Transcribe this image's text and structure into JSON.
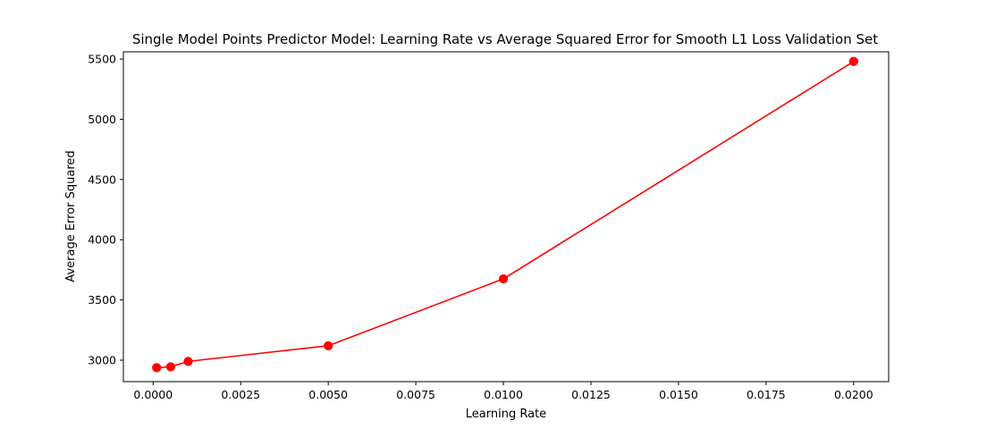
{
  "chart_data": {
    "type": "line",
    "title": "Single Model Points Predictor Model: Learning Rate vs Average Squared Error for Smooth L1 Loss Validation Set",
    "xlabel": "Learning Rate",
    "ylabel": "Average Error Squared",
    "xlim": [
      -0.00085,
      0.021
    ],
    "ylim": [
      2822,
      5560
    ],
    "x_ticks": [
      0.0,
      0.0025,
      0.005,
      0.0075,
      0.01,
      0.0125,
      0.015,
      0.0175,
      0.02
    ],
    "x_tick_labels": [
      "0.0000",
      "0.0025",
      "0.0050",
      "0.0075",
      "0.0100",
      "0.0125",
      "0.0150",
      "0.0175",
      "0.0200"
    ],
    "y_ticks": [
      3000,
      3500,
      4000,
      4500,
      5000,
      5500
    ],
    "y_tick_labels": [
      "3000",
      "3500",
      "4000",
      "4500",
      "5000",
      "5500"
    ],
    "grid": false,
    "series": [
      {
        "color": "#ff0000",
        "marker": "circle",
        "x": [
          0.0001,
          0.0005,
          0.001,
          0.005,
          0.01,
          0.02
        ],
        "y": [
          2938,
          2945,
          2990,
          3120,
          3675,
          5480
        ]
      }
    ]
  }
}
